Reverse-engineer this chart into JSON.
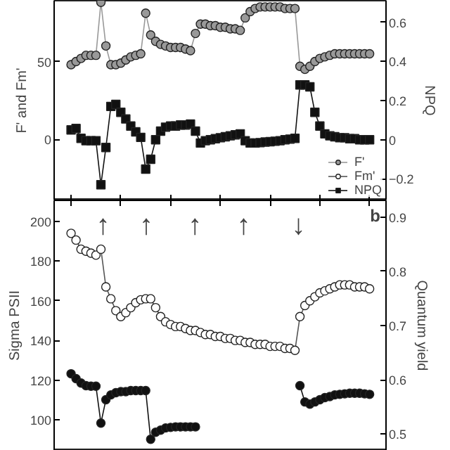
{
  "chart_data": [
    {
      "type": "line",
      "ylabel": "F' and Fm'",
      "y2label": "NPQ",
      "categories": [
        null,
        null,
        null,
        null,
        null,
        null,
        null,
        null,
        null,
        null,
        null,
        null,
        null,
        null,
        null,
        null,
        null,
        null,
        null,
        null,
        null,
        null,
        null,
        null,
        null,
        null,
        null,
        null,
        null,
        null,
        null,
        null,
        null,
        null,
        null,
        null,
        null,
        null,
        null,
        null,
        null,
        null,
        null,
        null,
        null,
        null,
        null,
        null,
        null,
        null,
        null,
        null,
        null,
        null,
        null,
        null,
        null,
        null,
        null,
        null,
        null
      ],
      "ylim": [
        -39,
        89
      ],
      "yticks": [
        0,
        50
      ],
      "y2lim": [
        -0.31,
        0.71
      ],
      "y2ticks": [
        -0.2,
        0,
        0.2,
        0.4,
        0.6
      ],
      "legend": "bottom right",
      "series": [
        {
          "name": "F'",
          "color": "#999999",
          "marker": "circle",
          "values": [
            48,
            50,
            52,
            54,
            54,
            54,
            88,
            60,
            48,
            48,
            49,
            51,
            53,
            54,
            55,
            81,
            67,
            63,
            61,
            60,
            59,
            59,
            59,
            58,
            57,
            68,
            74,
            74,
            73,
            73,
            72,
            72,
            71,
            71,
            70,
            78,
            82,
            84,
            85,
            85,
            85,
            85,
            85,
            84,
            84,
            84,
            47,
            45,
            47,
            50,
            52,
            53,
            54,
            55,
            55,
            55,
            55,
            55,
            55,
            55,
            55
          ]
        },
        {
          "name": "Fm'",
          "color": "#ffffff",
          "marker": "circle",
          "values": [
            null,
            null,
            null,
            null,
            null,
            null,
            null,
            null,
            null,
            null,
            null,
            null,
            null,
            null,
            null,
            null,
            null,
            null,
            null,
            null,
            null,
            null,
            null,
            null,
            null,
            null,
            null,
            null,
            null,
            null,
            null,
            null,
            null,
            null,
            null,
            null,
            null,
            null,
            null,
            null,
            null,
            null,
            null,
            null,
            null,
            null,
            null,
            null,
            null,
            null,
            null,
            null,
            null,
            null,
            null,
            null,
            null,
            null,
            null,
            null,
            null
          ]
        },
        {
          "name": "NPQ",
          "color": "#111111",
          "marker": "square",
          "axis": "y2",
          "values": [
            0.05,
            0.057,
            0.007,
            -0.005,
            -0.005,
            -0.005,
            -0.23,
            -0.04,
            0.17,
            0.18,
            0.14,
            0.106,
            0.07,
            0.04,
            0.012,
            -0.15,
            -0.1,
            0,
            0.044,
            0.064,
            0.07,
            0.07,
            0.075,
            0.075,
            0.08,
            0.044,
            -0.017,
            -0.005,
            0,
            0.005,
            0.01,
            0.015,
            0.02,
            0.025,
            0.03,
            -0.005,
            -0.017,
            -0.017,
            -0.015,
            -0.012,
            -0.01,
            -0.008,
            -0.005,
            0,
            0.003,
            0.007,
            0.28,
            0.28,
            0.27,
            0.14,
            0.07,
            0.03,
            0.02,
            0.015,
            0.01,
            0.01,
            0.005,
            0.005,
            0,
            0,
            0
          ]
        }
      ]
    },
    {
      "type": "line",
      "ylabel": "Sigma PSII",
      "y2label": "Quantum yield",
      "categories": [
        null,
        null,
        null,
        null,
        null,
        null,
        null,
        null,
        null,
        null,
        null,
        null,
        null,
        null,
        null,
        null,
        null,
        null,
        null,
        null,
        null,
        null,
        null,
        null,
        null,
        null,
        null,
        null,
        null,
        null,
        null,
        null,
        null,
        null,
        null,
        null,
        null,
        null,
        null,
        null,
        null,
        null,
        null,
        null,
        null,
        null,
        null,
        null,
        null,
        null,
        null,
        null,
        null,
        null,
        null,
        null,
        null,
        null,
        null,
        null,
        null
      ],
      "ylim": [
        84.4,
        210.6
      ],
      "yticks": [
        100,
        120,
        140,
        160,
        180,
        200
      ],
      "y2lim": [
        0.469,
        0.931
      ],
      "y2ticks": [
        0.5,
        0.6,
        0.7,
        0.8,
        0.9
      ],
      "annotations": [
        "b",
        "↑",
        "↑",
        "↑",
        "↑",
        "↓"
      ],
      "series": [
        {
          "color": "#ffffff",
          "marker": "circle",
          "values": [
            194,
            190.6,
            186,
            185,
            184,
            183,
            186,
            167,
            161,
            155,
            152,
            154,
            156.5,
            159,
            160.5,
            161,
            161,
            156.5,
            152,
            149.4,
            148,
            147,
            147,
            146,
            145,
            145,
            144,
            143,
            143,
            142,
            142,
            141,
            141,
            140,
            140,
            139,
            139,
            138,
            138,
            138,
            137,
            137,
            137,
            136,
            136,
            135,
            152,
            157.6,
            160,
            162,
            164,
            165,
            166,
            167,
            168,
            168,
            168,
            167,
            167,
            167,
            166
          ]
        },
        {
          "color": "#111111",
          "marker": "circle",
          "axis": "y2",
          "values": [
            0.611,
            0.602,
            0.594,
            0.589,
            0.588,
            0.588,
            0.52,
            0.563,
            0.572,
            0.576,
            0.578,
            0.578,
            0.58,
            0.58,
            0.58,
            0.58,
            0.49,
            0.503,
            0.507,
            0.511,
            0.512,
            0.513,
            0.513,
            0.513,
            0.513,
            0.513,
            null,
            null,
            null,
            null,
            null,
            null,
            null,
            null,
            null,
            null,
            null,
            null,
            null,
            null,
            null,
            null,
            null,
            null,
            null,
            null,
            0.589,
            0.559,
            0.555,
            0.559,
            0.563,
            0.567,
            0.569,
            0.572,
            0.573,
            0.574,
            0.575,
            0.575,
            0.575,
            0.574,
            0.573
          ]
        }
      ]
    }
  ]
}
